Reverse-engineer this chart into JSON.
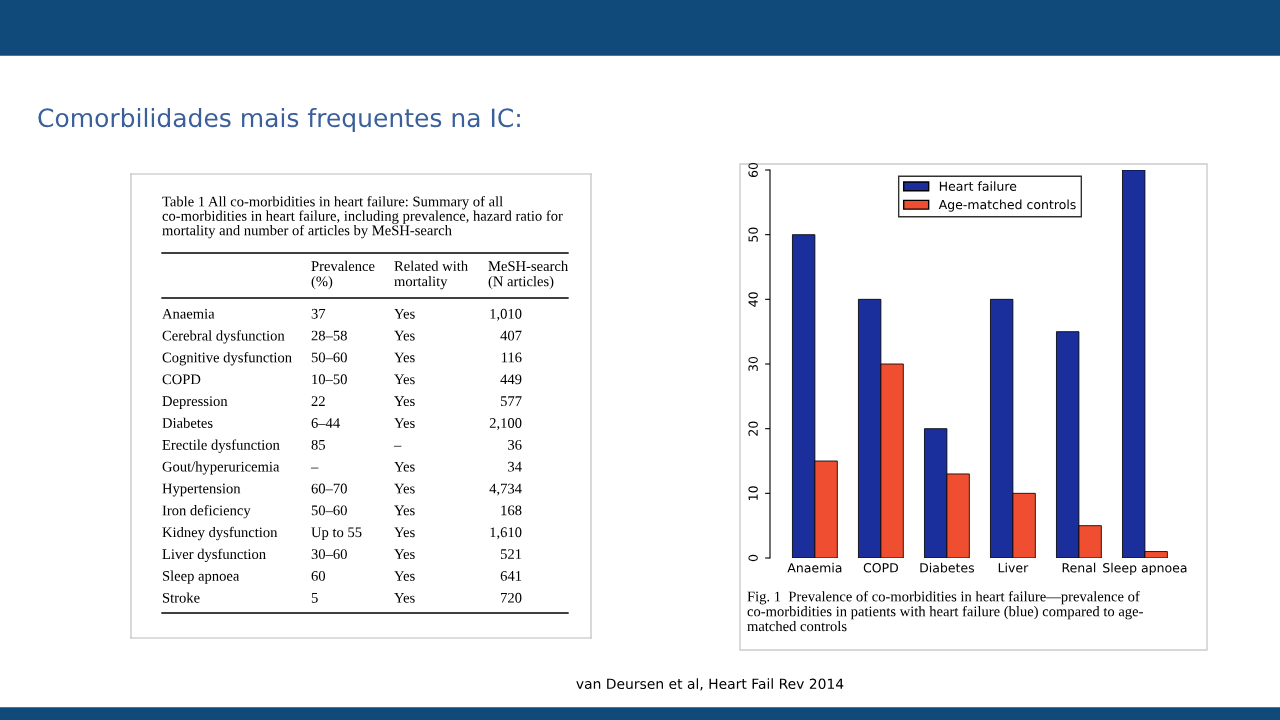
{
  "chart_data": [
    {
      "type": "other",
      "title": "Comorbilidades mais frequentes na IC:",
      "annotations": [
        "Table 1 All co-morbidities in heart failure: Summary of all\nco-morbidities in heart failure, including prevalence, hazard ratio for\nmortality and number of articles by MeSH-search",
        "Prevalence\n(%)",
        "Related with\nmortality",
        "MeSH-search\n(N articles)",
        "Anaemia",
        "37",
        "Yes",
        "1,010",
        "Cerebral dysfunction",
        "28–58",
        "Yes",
        "407",
        "Cognitive dysfunction",
        "50–60",
        "Yes",
        "116",
        "COPD",
        "10–50",
        "Yes",
        "449",
        "Depression",
        "22",
        "Yes",
        "577",
        "Diabetes",
        "6–44",
        "Yes",
        "2,100",
        "Erectile dysfunction",
        "85",
        "–",
        "36",
        "Gout/hyperuricemia",
        "–",
        "Yes",
        "34",
        "Hypertension",
        "60–70",
        "Yes",
        "4,734",
        "Iron deficiency",
        "50–60",
        "Yes",
        "168",
        "Kidney dysfunction",
        "Up to 55",
        "Yes",
        "1,610",
        "Liver dysfunction",
        "30–60",
        "Yes",
        "521",
        "Sleep apnoea",
        "60",
        "Yes",
        "641",
        "Stroke",
        "5",
        "Yes",
        "720"
      ]
    },
    {
      "type": "bar",
      "categories": [
        "Anaemia",
        "COPD",
        "Diabetes",
        "Liver",
        "Renal",
        "Sleep apnoea"
      ],
      "series": [
        {
          "name": "Heart failure",
          "color": "#1a2f9c",
          "values": [
            50,
            40,
            20,
            40,
            35,
            60
          ]
        },
        {
          "name": "Age-matched controls",
          "color": "#f04e30",
          "values": [
            15,
            30,
            13,
            10,
            5,
            1
          ]
        }
      ],
      "ylim": [
        0,
        60
      ],
      "yticks": [
        0,
        10,
        20,
        30,
        40,
        50,
        60
      ],
      "grid": false,
      "legend": "top",
      "annotations": [
        "Fig. 1  Prevalence of co-morbidities in heart failure—prevalence of\nco-morbidities in patients with heart failure (blue) compared to age-\nmatched controls",
        "van Deursen et al, Heart Fail Rev 2014"
      ]
    }
  ]
}
